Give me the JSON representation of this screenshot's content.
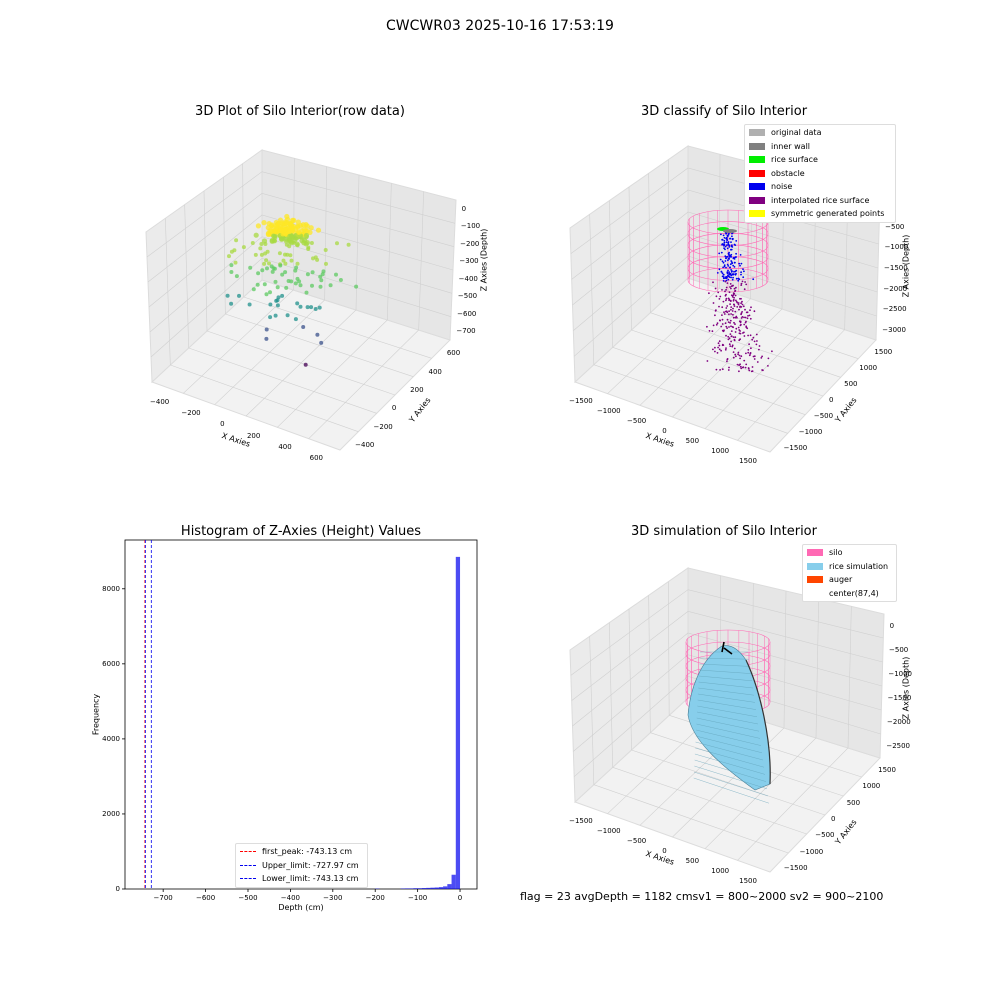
{
  "figure": {
    "suptitle": "CWCWR03 2025-10-16 17:53:19",
    "footer": "flag = 23  avgDepth = 1182 cmsv1 = 800~2000  sv2 = 900~2100"
  },
  "colors": {
    "original": "#b0b0b0",
    "inner_wall": "#808080",
    "rice_surface": "#00ee00",
    "obstacle": "#ff0000",
    "noise": "#0000ee",
    "interp": "#800080",
    "symmetric": "#ffff00",
    "silo": "#ff69b4",
    "rice_sim": "#87ceeb",
    "auger": "#ff4500",
    "hist": "#0000ee"
  },
  "chart_data": [
    {
      "type": "scatter",
      "title": "3D Plot of Silo Interior(row data)",
      "xlabel": "X Axies",
      "ylabel": "Y Axies",
      "zlabel": "Z Axies (Depth)",
      "x_ticks": [
        "−400",
        "−200",
        "0",
        "200",
        "400",
        "600"
      ],
      "y_ticks": [
        "−400",
        "−200",
        "0",
        "200",
        "400",
        "600"
      ],
      "z_ticks": [
        "0",
        "−100",
        "−200",
        "−300",
        "−400",
        "−500",
        "−600",
        "−700"
      ],
      "xlim": [
        -500,
        650
      ],
      "ylim": [
        -500,
        650
      ],
      "zlim": [
        -743,
        0
      ],
      "colormap": "viridis"
    },
    {
      "type": "scatter",
      "title": "3D classify of Silo Interior",
      "xlabel": "X Axies",
      "ylabel": "Y Axies",
      "zlabel": "Z Axies (Depth)",
      "x_ticks": [
        "−1500",
        "−1000",
        "−500",
        "0",
        "500",
        "1000",
        "1500"
      ],
      "y_ticks": [
        "−1500",
        "−1000",
        "−500",
        "0",
        "500",
        "1000",
        "1500"
      ],
      "z_ticks": [
        "0",
        "−500",
        "−1000",
        "−1500",
        "−2000",
        "−2500",
        "−3000"
      ],
      "xlim": [
        -1600,
        1600
      ],
      "ylim": [
        -1600,
        1600
      ],
      "zlim": [
        -3200,
        0
      ],
      "legend_position": "top-right",
      "legend": [
        {
          "label": "original data",
          "color": "#b0b0b0"
        },
        {
          "label": "inner wall",
          "color": "#808080"
        },
        {
          "label": "rice surface",
          "color": "#00ee00"
        },
        {
          "label": "obstacle",
          "color": "#ff0000"
        },
        {
          "label": "noise",
          "color": "#0000ee"
        },
        {
          "label": "interpolated rice surface",
          "color": "#800080"
        },
        {
          "label": "symmetric generated points",
          "color": "#ffff00"
        }
      ]
    },
    {
      "type": "bar",
      "title": "Histogram of Z-Axies (Height) Values",
      "xlabel": "Depth (cm)",
      "ylabel": "Frequency",
      "xlim": [
        -790,
        40
      ],
      "ylim": [
        0,
        9300
      ],
      "x_ticks": [
        -700,
        -600,
        -500,
        -400,
        -300,
        -200,
        -100,
        0
      ],
      "y_ticks": [
        0,
        2000,
        4000,
        6000,
        8000
      ],
      "bins": [
        {
          "x0": -200,
          "x1": -190,
          "count": 10
        },
        {
          "x0": -140,
          "x1": -130,
          "count": 12
        },
        {
          "x0": -130,
          "x1": -120,
          "count": 15
        },
        {
          "x0": -120,
          "x1": -110,
          "count": 15
        },
        {
          "x0": -110,
          "x1": -100,
          "count": 20
        },
        {
          "x0": -100,
          "x1": -90,
          "count": 20
        },
        {
          "x0": -90,
          "x1": -80,
          "count": 25
        },
        {
          "x0": -80,
          "x1": -70,
          "count": 30
        },
        {
          "x0": -70,
          "x1": -60,
          "count": 35
        },
        {
          "x0": -60,
          "x1": -50,
          "count": 40
        },
        {
          "x0": -50,
          "x1": -40,
          "count": 50
        },
        {
          "x0": -40,
          "x1": -30,
          "count": 70
        },
        {
          "x0": -30,
          "x1": -20,
          "count": 130
        },
        {
          "x0": -20,
          "x1": -10,
          "count": 380
        },
        {
          "x0": -10,
          "x1": 0,
          "count": 8850
        }
      ],
      "vlines": [
        {
          "x": -743.13,
          "color": "#ff0000",
          "label": "first_peak: -743.13 cm"
        },
        {
          "x": -727.97,
          "color": "#0000ee",
          "label": "Upper_limit: -727.97 cm"
        },
        {
          "x": -743.13,
          "color": "#0000ee",
          "label": "Lower_limit: -743.13 cm"
        }
      ],
      "legend_position": "lower-center"
    },
    {
      "type": "area",
      "title": "3D simulation of Silo Interior",
      "xlabel": "X Axies",
      "ylabel": "Y Axies",
      "zlabel": "Z Axies (Depth)",
      "x_ticks": [
        "−1500",
        "−1000",
        "−500",
        "0",
        "500",
        "1000",
        "1500"
      ],
      "y_ticks": [
        "−1500",
        "−1000",
        "−500",
        "0",
        "500",
        "1000",
        "1500"
      ],
      "z_ticks": [
        "0",
        "−500",
        "−1000",
        "−1500",
        "−2000",
        "−2500"
      ],
      "xlim": [
        -1600,
        1600
      ],
      "ylim": [
        -1600,
        1600
      ],
      "zlim": [
        -2800,
        0
      ],
      "legend_position": "top-right",
      "legend": [
        {
          "label": "silo",
          "color": "#ff69b4"
        },
        {
          "label": "rice simulation",
          "color": "#87ceeb"
        },
        {
          "label": "auger",
          "color": "#ff4500"
        },
        {
          "label": "center(87,4)",
          "color": ""
        }
      ]
    }
  ]
}
